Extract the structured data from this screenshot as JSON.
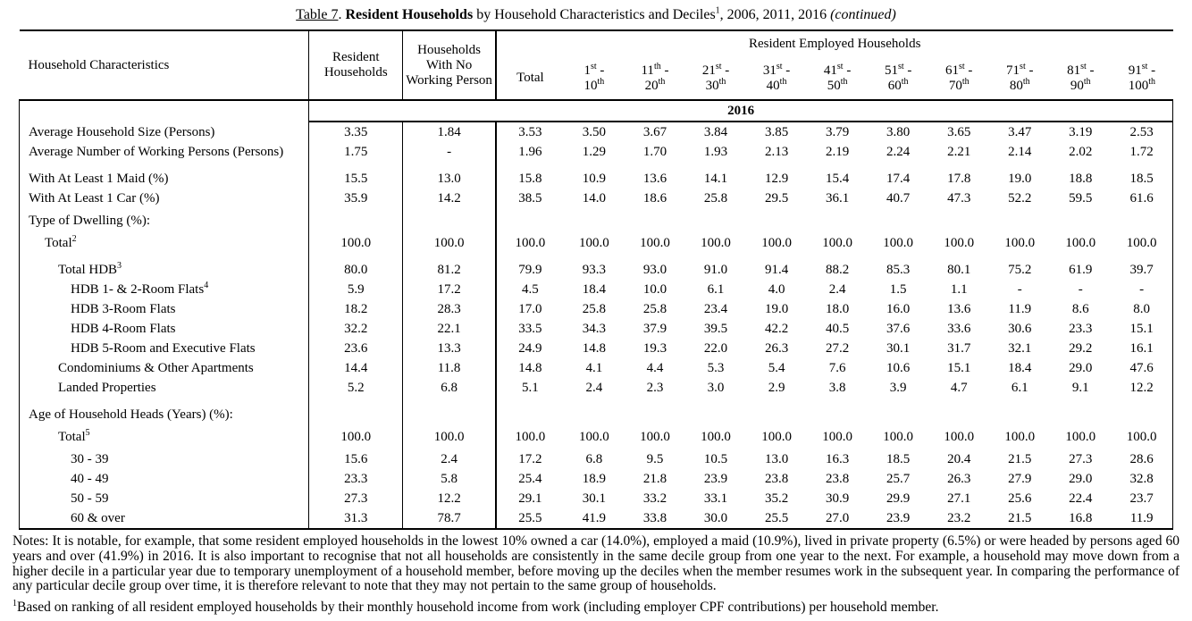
{
  "title": {
    "label": "Table 7",
    "after_label": ". ",
    "bold": "Resident Households",
    "middle": " by Household Characteristics and Deciles",
    "sup": "1",
    "years": ", 2006, 2011, 2016 ",
    "continued": "(continued)"
  },
  "table": {
    "header": {
      "characteristics": "Household Characteristics",
      "resident": "Resident Households",
      "no_working": "Households With No Working Person",
      "employed_group": "Resident Employed Households",
      "total": "Total",
      "deciles": [
        {
          "from": "1",
          "from_suffix": "st",
          "to": "10",
          "to_suffix": "th"
        },
        {
          "from": "11",
          "from_suffix": "th",
          "to": "20",
          "to_suffix": "th"
        },
        {
          "from": "21",
          "from_suffix": "st",
          "to": "30",
          "to_suffix": "th"
        },
        {
          "from": "31",
          "from_suffix": "st",
          "to": "40",
          "to_suffix": "th"
        },
        {
          "from": "41",
          "from_suffix": "st",
          "to": "50",
          "to_suffix": "th"
        },
        {
          "from": "51",
          "from_suffix": "st",
          "to": "60",
          "to_suffix": "th"
        },
        {
          "from": "61",
          "from_suffix": "st",
          "to": "70",
          "to_suffix": "th"
        },
        {
          "from": "71",
          "from_suffix": "st",
          "to": "80",
          "to_suffix": "th"
        },
        {
          "from": "81",
          "from_suffix": "st",
          "to": "90",
          "to_suffix": "th"
        },
        {
          "from": "91",
          "from_suffix": "st",
          "to": "100",
          "to_suffix": "th"
        }
      ]
    },
    "year_band": "2016",
    "rows": [
      {
        "label": "Average Household Size (Persons)",
        "indent": 0,
        "values": [
          "3.35",
          "1.84",
          "3.53",
          "3.50",
          "3.67",
          "3.84",
          "3.85",
          "3.79",
          "3.80",
          "3.65",
          "3.47",
          "3.19",
          "2.53"
        ]
      },
      {
        "label": "Average Number of Working Persons (Persons)",
        "indent": 0,
        "values": [
          "1.75",
          "-",
          "1.96",
          "1.29",
          "1.70",
          "1.93",
          "2.13",
          "2.19",
          "2.24",
          "2.21",
          "2.14",
          "2.02",
          "1.72"
        ]
      },
      {
        "label": "With At Least 1 Maid (%)",
        "indent": 0,
        "gap": true,
        "values": [
          "15.5",
          "13.0",
          "15.8",
          "10.9",
          "13.6",
          "14.1",
          "12.9",
          "15.4",
          "17.4",
          "17.8",
          "19.0",
          "18.8",
          "18.5"
        ]
      },
      {
        "label": "With At Least 1 Car (%)",
        "indent": 0,
        "values": [
          "35.9",
          "14.2",
          "38.5",
          "14.0",
          "18.6",
          "25.8",
          "29.5",
          "36.1",
          "40.7",
          "47.3",
          "52.2",
          "59.5",
          "61.6"
        ]
      },
      {
        "label": "Type of Dwelling (%):",
        "indent": 0,
        "gap_sm": true,
        "values": []
      },
      {
        "label": "Total",
        "sup": "2",
        "indent": 1,
        "gap_sm": true,
        "values": [
          "100.0",
          "100.0",
          "100.0",
          "100.0",
          "100.0",
          "100.0",
          "100.0",
          "100.0",
          "100.0",
          "100.0",
          "100.0",
          "100.0",
          "100.0"
        ]
      },
      {
        "label": "Total HDB",
        "sup": "3",
        "indent": 2,
        "gap": true,
        "values": [
          "80.0",
          "81.2",
          "79.9",
          "93.3",
          "93.0",
          "91.0",
          "91.4",
          "88.2",
          "85.3",
          "80.1",
          "75.2",
          "61.9",
          "39.7"
        ]
      },
      {
        "label": "HDB 1- & 2-Room Flats",
        "sup": "4",
        "indent": 3,
        "values": [
          "5.9",
          "17.2",
          "4.5",
          "18.4",
          "10.0",
          "6.1",
          "4.0",
          "2.4",
          "1.5",
          "1.1",
          "-",
          "-",
          "-"
        ]
      },
      {
        "label": "HDB 3-Room Flats",
        "indent": 3,
        "values": [
          "18.2",
          "28.3",
          "17.0",
          "25.8",
          "25.8",
          "23.4",
          "19.0",
          "18.0",
          "16.0",
          "13.6",
          "11.9",
          "8.6",
          "8.0"
        ]
      },
      {
        "label": "HDB 4-Room Flats",
        "indent": 3,
        "values": [
          "32.2",
          "22.1",
          "33.5",
          "34.3",
          "37.9",
          "39.5",
          "42.2",
          "40.5",
          "37.6",
          "33.6",
          "30.6",
          "23.3",
          "15.1"
        ]
      },
      {
        "label": "HDB 5-Room and Executive Flats",
        "indent": 3,
        "values": [
          "23.6",
          "13.3",
          "24.9",
          "14.8",
          "19.3",
          "22.0",
          "26.3",
          "27.2",
          "30.1",
          "31.7",
          "32.1",
          "29.2",
          "16.1"
        ]
      },
      {
        "label": "Condominiums & Other Apartments",
        "indent": 2,
        "values": [
          "14.4",
          "11.8",
          "14.8",
          "4.1",
          "4.4",
          "5.3",
          "5.4",
          "7.6",
          "10.6",
          "15.1",
          "18.4",
          "29.0",
          "47.6"
        ]
      },
      {
        "label": "Landed Properties",
        "indent": 2,
        "values": [
          "5.2",
          "6.8",
          "5.1",
          "2.4",
          "2.3",
          "3.0",
          "2.9",
          "3.8",
          "3.9",
          "4.7",
          "6.1",
          "9.1",
          "12.2"
        ]
      },
      {
        "label": "Age of Household Heads (Years) (%):",
        "indent": 0,
        "gap": true,
        "values": []
      },
      {
        "label": "Total",
        "sup": "5",
        "indent": 2,
        "gap_sm": true,
        "values": [
          "100.0",
          "100.0",
          "100.0",
          "100.0",
          "100.0",
          "100.0",
          "100.0",
          "100.0",
          "100.0",
          "100.0",
          "100.0",
          "100.0",
          "100.0"
        ]
      },
      {
        "label": "30 - 39",
        "indent": 3,
        "gap_sm": true,
        "values": [
          "15.6",
          "2.4",
          "17.2",
          "6.8",
          "9.5",
          "10.5",
          "13.0",
          "16.3",
          "18.5",
          "20.4",
          "21.5",
          "27.3",
          "28.6"
        ]
      },
      {
        "label": "40 - 49",
        "indent": 3,
        "values": [
          "23.3",
          "5.8",
          "25.4",
          "18.9",
          "21.8",
          "23.9",
          "23.8",
          "23.8",
          "25.7",
          "26.3",
          "27.9",
          "29.0",
          "32.8"
        ]
      },
      {
        "label": "50 - 59",
        "indent": 3,
        "values": [
          "27.3",
          "12.2",
          "29.1",
          "30.1",
          "33.2",
          "33.1",
          "35.2",
          "30.9",
          "29.9",
          "27.1",
          "25.6",
          "22.4",
          "23.7"
        ]
      },
      {
        "label": "60 & over",
        "indent": 3,
        "values": [
          "31.3",
          "78.7",
          "25.5",
          "41.9",
          "33.8",
          "30.0",
          "25.5",
          "27.0",
          "23.9",
          "23.2",
          "21.5",
          "16.8",
          "11.9"
        ]
      }
    ]
  },
  "notes": "Notes: It is notable, for example, that some resident employed households in the lowest 10% owned a car (14.0%), employed a maid (10.9%), lived in private property (6.5%) or were headed by persons aged 60 years and over (41.9%) in 2016. It is also important to recognise that not all households are consistently in the same decile group from one year to the next. For example, a household may move down from a higher decile in a particular year due to temporary unemployment of a household member, before moving up the deciles when the member resumes work in the subsequent year. In comparing the performance of any particular decile group over time, it is therefore relevant to note that they may not pertain to the same group of households.",
  "footnote": {
    "sup": "1",
    "text": "Based on ranking of all resident employed households by their monthly household income from work (including employer CPF contributions) per household member."
  }
}
